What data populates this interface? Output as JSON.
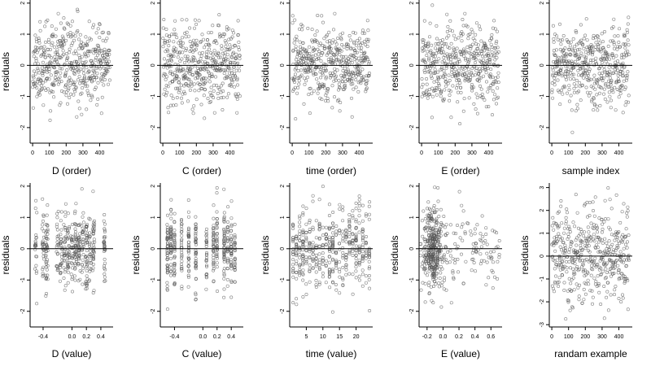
{
  "chart_data": [
    {
      "type": "scatter",
      "xlabel": "D (order)",
      "ylabel": "residuals",
      "x_mode": "index",
      "n": 460,
      "seed": 11,
      "xlim": [
        -15,
        480
      ],
      "ylim": [
        -2.5,
        2.1
      ],
      "xticks": [
        0,
        100,
        200,
        300,
        400
      ],
      "xtick_labels": [
        "0",
        "100",
        "200",
        "300",
        "400"
      ],
      "yticks": [
        -2,
        -1,
        0,
        1,
        2
      ],
      "ytick_labels": [
        "-2",
        "-1",
        "0",
        "1",
        "2"
      ],
      "ref_line": 0,
      "point_color": "#555555"
    },
    {
      "type": "scatter",
      "xlabel": "C (order)",
      "ylabel": "residuals",
      "x_mode": "index",
      "n": 460,
      "seed": 12,
      "xlim": [
        -15,
        480
      ],
      "ylim": [
        -2.5,
        2.1
      ],
      "xticks": [
        0,
        100,
        200,
        300,
        400
      ],
      "xtick_labels": [
        "0",
        "100",
        "200",
        "300",
        "400"
      ],
      "yticks": [
        -2,
        -1,
        0,
        1,
        2
      ],
      "ytick_labels": [
        "-2",
        "-1",
        "0",
        "1",
        "2"
      ],
      "ref_line": 0,
      "point_color": "#555555"
    },
    {
      "type": "scatter",
      "xlabel": "time (order)",
      "ylabel": "residuals",
      "x_mode": "index",
      "n": 460,
      "seed": 13,
      "xlim": [
        -15,
        480
      ],
      "ylim": [
        -2.5,
        2.1
      ],
      "xticks": [
        0,
        100,
        200,
        300,
        400
      ],
      "xtick_labels": [
        "0",
        "100",
        "200",
        "300",
        "400"
      ],
      "yticks": [
        -2,
        -1,
        0,
        1,
        2
      ],
      "ytick_labels": [
        "-2",
        "-1",
        "0",
        "1",
        "2"
      ],
      "ref_line": 0,
      "point_color": "#555555"
    },
    {
      "type": "scatter",
      "xlabel": "E (order)",
      "ylabel": "residuals",
      "x_mode": "index",
      "n": 460,
      "seed": 14,
      "xlim": [
        -15,
        480
      ],
      "ylim": [
        -2.5,
        2.1
      ],
      "xticks": [
        0,
        100,
        200,
        300,
        400
      ],
      "xtick_labels": [
        "0",
        "100",
        "200",
        "300",
        "400"
      ],
      "yticks": [
        -2,
        -1,
        0,
        1,
        2
      ],
      "ytick_labels": [
        "-2",
        "-1",
        "0",
        "1",
        "2"
      ],
      "ref_line": 0,
      "point_color": "#555555"
    },
    {
      "type": "scatter",
      "xlabel": "sample index",
      "ylabel": "residuals",
      "x_mode": "index",
      "n": 460,
      "seed": 15,
      "xlim": [
        -15,
        480
      ],
      "ylim": [
        -2.5,
        2.1
      ],
      "xticks": [
        0,
        100,
        200,
        300,
        400
      ],
      "xtick_labels": [
        "0",
        "100",
        "200",
        "300",
        "400"
      ],
      "yticks": [
        -2,
        -1,
        0,
        1,
        2
      ],
      "ytick_labels": [
        "-2",
        "-1",
        "0",
        "1",
        "2"
      ],
      "ref_line": 0,
      "point_color": "#555555"
    },
    {
      "type": "scatter",
      "xlabel": "D (value)",
      "ylabel": "residuals",
      "x_mode": "clusters",
      "clusters": [
        -0.5,
        -0.4,
        -0.35,
        -0.2,
        -0.15,
        -0.1,
        -0.05,
        0.0,
        0.05,
        0.1,
        0.15,
        0.2,
        0.25,
        0.3,
        0.45
      ],
      "x_jitter": 0.015,
      "n": 460,
      "seed": 21,
      "xlim": [
        -0.58,
        0.57
      ],
      "ylim": [
        -2.5,
        2.1
      ],
      "xticks": [
        -0.4,
        0.0,
        0.2,
        0.4
      ],
      "xtick_labels": [
        "-0.4",
        "0.0",
        "0.2",
        "0.4"
      ],
      "yticks": [
        -2,
        -1,
        0,
        1,
        2
      ],
      "ytick_labels": [
        "-2",
        "-1",
        "0",
        "1",
        "2"
      ],
      "ref_line": 0,
      "point_color": "#555555"
    },
    {
      "type": "scatter",
      "xlabel": "C (value)",
      "ylabel": "residuals",
      "x_mode": "clusters",
      "clusters": [
        -0.5,
        -0.45,
        -0.4,
        -0.3,
        -0.2,
        -0.1,
        0.05,
        0.15,
        0.2,
        0.3,
        0.35,
        0.4,
        0.45
      ],
      "x_jitter": 0.004,
      "n": 460,
      "seed": 22,
      "xlim": [
        -0.6,
        0.57
      ],
      "ylim": [
        -2.5,
        2.1
      ],
      "xticks": [
        -0.4,
        0.0,
        0.2,
        0.4
      ],
      "xtick_labels": [
        "-0.4",
        "0.0",
        "0.2",
        "0.4"
      ],
      "yticks": [
        -2,
        -1,
        0,
        1,
        2
      ],
      "ytick_labels": [
        "-2",
        "-1",
        "0",
        "1",
        "2"
      ],
      "ref_line": 0,
      "point_color": "#555555"
    },
    {
      "type": "scatter",
      "xlabel": "time (value)",
      "ylabel": "residuals",
      "x_mode": "clusters",
      "clusters": [
        1,
        2,
        3,
        4,
        5,
        6,
        7,
        8,
        9,
        10,
        11,
        12,
        13,
        14,
        15,
        16,
        17,
        18,
        19,
        20,
        21,
        22,
        23,
        24
      ],
      "x_jitter": 0.05,
      "n": 460,
      "seed": 23,
      "xlim": [
        0,
        25
      ],
      "ylim": [
        -2.5,
        2.1
      ],
      "xticks": [
        5,
        10,
        15,
        20
      ],
      "xtick_labels": [
        "5",
        "10",
        "15",
        "20"
      ],
      "yticks": [
        -2,
        -1,
        0,
        1,
        2
      ],
      "ytick_labels": [
        "-2",
        "-1",
        "0",
        "1",
        "2"
      ],
      "ref_line": 0,
      "point_color": "#555555"
    },
    {
      "type": "scatter",
      "xlabel": "E (value)",
      "ylabel": "residuals",
      "x_mode": "skewed",
      "x_center": -0.13,
      "x_min": -0.28,
      "x_max": 0.72,
      "n": 460,
      "seed": 24,
      "xlim": [
        -0.3,
        0.74
      ],
      "ylim": [
        -2.5,
        2.1
      ],
      "xticks": [
        -0.2,
        0.0,
        0.2,
        0.4,
        0.6
      ],
      "xtick_labels": [
        "-0.2",
        "0.0",
        "0.2",
        "0.4",
        "0.6"
      ],
      "yticks": [
        -2,
        -1,
        0,
        1,
        2
      ],
      "ytick_labels": [
        "-2",
        "-1",
        "0",
        "1",
        "2"
      ],
      "ref_line": 0,
      "point_color": "#555555"
    },
    {
      "type": "scatter",
      "xlabel": "randam example",
      "ylabel": "residuals",
      "x_mode": "index",
      "n": 460,
      "seed": 25,
      "y_scale": 1.05,
      "xlim": [
        -15,
        480
      ],
      "ylim": [
        -3.1,
        3.2
      ],
      "xticks": [
        0,
        100,
        200,
        300,
        400
      ],
      "xtick_labels": [
        "0",
        "100",
        "200",
        "300",
        "400"
      ],
      "yticks": [
        -3,
        -2,
        -1,
        0,
        1,
        2,
        3
      ],
      "ytick_labels": [
        "-3",
        "-2",
        "-1",
        "0",
        "1",
        "2",
        "3"
      ],
      "ref_line": 0,
      "point_color": "#555555"
    }
  ]
}
